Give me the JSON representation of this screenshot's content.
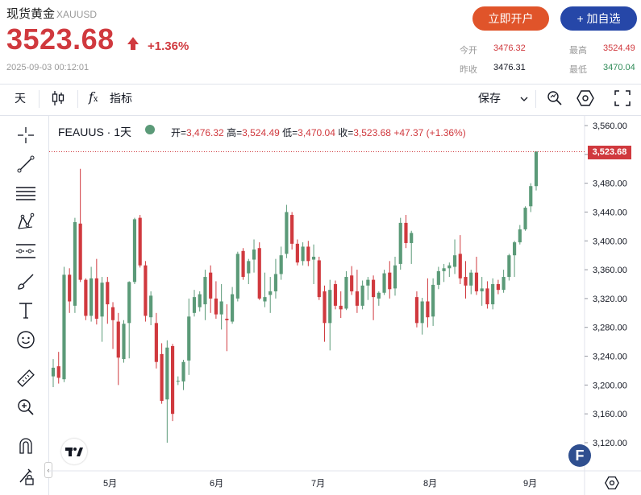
{
  "header": {
    "name": "现货黄金",
    "symbol": "XAUUSD",
    "price": "3523.68",
    "change": "+1.36%",
    "timestamp": "2025-09-03 00:12:01",
    "btn_open": "立即开户",
    "btn_watch": "+ 加自选",
    "stats": {
      "open_label": "今开",
      "open_value": "3476.32",
      "high_label": "最高",
      "high_value": "3524.49",
      "prev_label": "昨收",
      "prev_value": "3476.31",
      "low_label": "最低",
      "low_value": "3470.04"
    }
  },
  "toolbar": {
    "interval": "天",
    "indicators": "指标",
    "save": "保存"
  },
  "legend": {
    "symbol": "FEAUUS",
    "interval": "1天",
    "open_k": "开=",
    "open_v": "3,476.32",
    "high_k": "高=",
    "high_v": "3,524.49",
    "low_k": "低=",
    "low_v": "3,470.04",
    "close_k": "收=",
    "close_v": "3,523.68",
    "change_v": "+47.37 (+1.36%)",
    "last_price": "3,523.68"
  },
  "colors": {
    "up": "#5b9a78",
    "down": "#d0393e",
    "accent": "#d0393e",
    "open_btn": "#e0542a",
    "watch_btn": "#2647a8"
  },
  "chart_data": {
    "type": "candlestick",
    "y_ticks": [
      "3,560.00",
      "3,520.00",
      "3,480.00",
      "3,440.00",
      "3,400.00",
      "3,360.00",
      "3,320.00",
      "3,280.00",
      "3,240.00",
      "3,200.00",
      "3,160.00",
      "3,120.00"
    ],
    "ylim": [
      3100,
      3560
    ],
    "x_ticks": [
      "5月",
      "6月",
      "7月",
      "8月",
      "9月"
    ],
    "last_price": 3523.68,
    "candles": [
      {
        "o": 3212,
        "h": 3236,
        "l": 3197,
        "c": 3224
      },
      {
        "o": 3226,
        "h": 3246,
        "l": 3202,
        "c": 3210
      },
      {
        "o": 3208,
        "h": 3364,
        "l": 3204,
        "c": 3353
      },
      {
        "o": 3353,
        "h": 3362,
        "l": 3300,
        "c": 3316
      },
      {
        "o": 3310,
        "h": 3432,
        "l": 3300,
        "c": 3426
      },
      {
        "o": 3424,
        "h": 3500,
        "l": 3343,
        "c": 3346
      },
      {
        "o": 3346,
        "h": 3348,
        "l": 3290,
        "c": 3296
      },
      {
        "o": 3296,
        "h": 3364,
        "l": 3288,
        "c": 3348
      },
      {
        "o": 3348,
        "h": 3375,
        "l": 3284,
        "c": 3292
      },
      {
        "o": 3295,
        "h": 3350,
        "l": 3260,
        "c": 3342
      },
      {
        "o": 3343,
        "h": 3350,
        "l": 3285,
        "c": 3312
      },
      {
        "o": 3308,
        "h": 3315,
        "l": 3250,
        "c": 3290
      },
      {
        "o": 3288,
        "h": 3300,
        "l": 3200,
        "c": 3238
      },
      {
        "o": 3236,
        "h": 3290,
        "l": 3231,
        "c": 3285
      },
      {
        "o": 3286,
        "h": 3344,
        "l": 3237,
        "c": 3343
      },
      {
        "o": 3343,
        "h": 3432,
        "l": 3340,
        "c": 3430
      },
      {
        "o": 3432,
        "h": 3436,
        "l": 3363,
        "c": 3366
      },
      {
        "o": 3366,
        "h": 3372,
        "l": 3288,
        "c": 3296
      },
      {
        "o": 3294,
        "h": 3330,
        "l": 3283,
        "c": 3324
      },
      {
        "o": 3286,
        "h": 3300,
        "l": 3223,
        "c": 3232
      },
      {
        "o": 3243,
        "h": 3258,
        "l": 3174,
        "c": 3178
      },
      {
        "o": 3180,
        "h": 3262,
        "l": 3120,
        "c": 3252
      },
      {
        "o": 3254,
        "h": 3257,
        "l": 3150,
        "c": 3160
      },
      {
        "o": 3205,
        "h": 3212,
        "l": 3200,
        "c": 3206
      },
      {
        "o": 3205,
        "h": 3235,
        "l": 3193,
        "c": 3232
      },
      {
        "o": 3234,
        "h": 3320,
        "l": 3214,
        "c": 3295
      },
      {
        "o": 3300,
        "h": 3332,
        "l": 3295,
        "c": 3322
      },
      {
        "o": 3308,
        "h": 3330,
        "l": 3302,
        "c": 3326
      },
      {
        "o": 3312,
        "h": 3360,
        "l": 3290,
        "c": 3350
      },
      {
        "o": 3356,
        "h": 3366,
        "l": 3300,
        "c": 3320
      },
      {
        "o": 3320,
        "h": 3344,
        "l": 3292,
        "c": 3298
      },
      {
        "o": 3298,
        "h": 3340,
        "l": 3277,
        "c": 3316
      },
      {
        "o": 3292,
        "h": 3312,
        "l": 3247,
        "c": 3290
      },
      {
        "o": 3288,
        "h": 3336,
        "l": 3285,
        "c": 3326
      },
      {
        "o": 3320,
        "h": 3385,
        "l": 3316,
        "c": 3382
      },
      {
        "o": 3386,
        "h": 3390,
        "l": 3346,
        "c": 3350
      },
      {
        "o": 3355,
        "h": 3375,
        "l": 3340,
        "c": 3372
      },
      {
        "o": 3374,
        "h": 3402,
        "l": 3356,
        "c": 3388
      },
      {
        "o": 3390,
        "h": 3398,
        "l": 3318,
        "c": 3320
      },
      {
        "o": 3316,
        "h": 3356,
        "l": 3308,
        "c": 3322
      },
      {
        "o": 3325,
        "h": 3350,
        "l": 3300,
        "c": 3330
      },
      {
        "o": 3330,
        "h": 3375,
        "l": 3320,
        "c": 3354
      },
      {
        "o": 3354,
        "h": 3392,
        "l": 3346,
        "c": 3380
      },
      {
        "o": 3382,
        "h": 3450,
        "l": 3376,
        "c": 3440
      },
      {
        "o": 3436,
        "h": 3440,
        "l": 3388,
        "c": 3396
      },
      {
        "o": 3396,
        "h": 3402,
        "l": 3366,
        "c": 3370
      },
      {
        "o": 3372,
        "h": 3398,
        "l": 3366,
        "c": 3392
      },
      {
        "o": 3392,
        "h": 3400,
        "l": 3365,
        "c": 3372
      },
      {
        "o": 3374,
        "h": 3395,
        "l": 3340,
        "c": 3378
      },
      {
        "o": 3373,
        "h": 3378,
        "l": 3318,
        "c": 3322
      },
      {
        "o": 3330,
        "h": 3338,
        "l": 3260,
        "c": 3286
      },
      {
        "o": 3286,
        "h": 3346,
        "l": 3248,
        "c": 3332
      },
      {
        "o": 3340,
        "h": 3345,
        "l": 3305,
        "c": 3310
      },
      {
        "o": 3310,
        "h": 3330,
        "l": 3293,
        "c": 3305
      },
      {
        "o": 3306,
        "h": 3358,
        "l": 3304,
        "c": 3350
      },
      {
        "o": 3352,
        "h": 3365,
        "l": 3325,
        "c": 3330
      },
      {
        "o": 3330,
        "h": 3360,
        "l": 3300,
        "c": 3310
      },
      {
        "o": 3310,
        "h": 3345,
        "l": 3305,
        "c": 3338
      },
      {
        "o": 3338,
        "h": 3350,
        "l": 3318,
        "c": 3346
      },
      {
        "o": 3346,
        "h": 3352,
        "l": 3290,
        "c": 3322
      },
      {
        "o": 3320,
        "h": 3330,
        "l": 3310,
        "c": 3328
      },
      {
        "o": 3328,
        "h": 3360,
        "l": 3325,
        "c": 3355
      },
      {
        "o": 3356,
        "h": 3372,
        "l": 3320,
        "c": 3333
      },
      {
        "o": 3334,
        "h": 3378,
        "l": 3324,
        "c": 3366
      },
      {
        "o": 3368,
        "h": 3432,
        "l": 3360,
        "c": 3425
      },
      {
        "o": 3425,
        "h": 3436,
        "l": 3390,
        "c": 3397
      },
      {
        "o": 3397,
        "h": 3414,
        "l": 3368,
        "c": 3411
      },
      {
        "o": 3322,
        "h": 3330,
        "l": 3280,
        "c": 3286
      },
      {
        "o": 3286,
        "h": 3321,
        "l": 3270,
        "c": 3316
      },
      {
        "o": 3316,
        "h": 3348,
        "l": 3280,
        "c": 3294
      },
      {
        "o": 3295,
        "h": 3348,
        "l": 3282,
        "c": 3339
      },
      {
        "o": 3339,
        "h": 3364,
        "l": 3333,
        "c": 3358
      },
      {
        "o": 3358,
        "h": 3368,
        "l": 3343,
        "c": 3362
      },
      {
        "o": 3362,
        "h": 3370,
        "l": 3350,
        "c": 3366
      },
      {
        "o": 3364,
        "h": 3402,
        "l": 3354,
        "c": 3380
      },
      {
        "o": 3382,
        "h": 3408,
        "l": 3340,
        "c": 3348
      },
      {
        "o": 3350,
        "h": 3372,
        "l": 3320,
        "c": 3338
      },
      {
        "o": 3338,
        "h": 3360,
        "l": 3326,
        "c": 3356
      },
      {
        "o": 3356,
        "h": 3378,
        "l": 3325,
        "c": 3330
      },
      {
        "o": 3330,
        "h": 3350,
        "l": 3310,
        "c": 3334
      },
      {
        "o": 3334,
        "h": 3344,
        "l": 3306,
        "c": 3312
      },
      {
        "o": 3312,
        "h": 3348,
        "l": 3305,
        "c": 3340
      },
      {
        "o": 3340,
        "h": 3346,
        "l": 3326,
        "c": 3332
      },
      {
        "o": 3332,
        "h": 3360,
        "l": 3328,
        "c": 3350
      },
      {
        "o": 3350,
        "h": 3382,
        "l": 3345,
        "c": 3380
      },
      {
        "o": 3380,
        "h": 3400,
        "l": 3350,
        "c": 3398
      },
      {
        "o": 3398,
        "h": 3422,
        "l": 3395,
        "c": 3416
      },
      {
        "o": 3416,
        "h": 3448,
        "l": 3414,
        "c": 3446
      },
      {
        "o": 3448,
        "h": 3480,
        "l": 3440,
        "c": 3476
      },
      {
        "o": 3476,
        "h": 3524,
        "l": 3470,
        "c": 3524
      }
    ]
  }
}
